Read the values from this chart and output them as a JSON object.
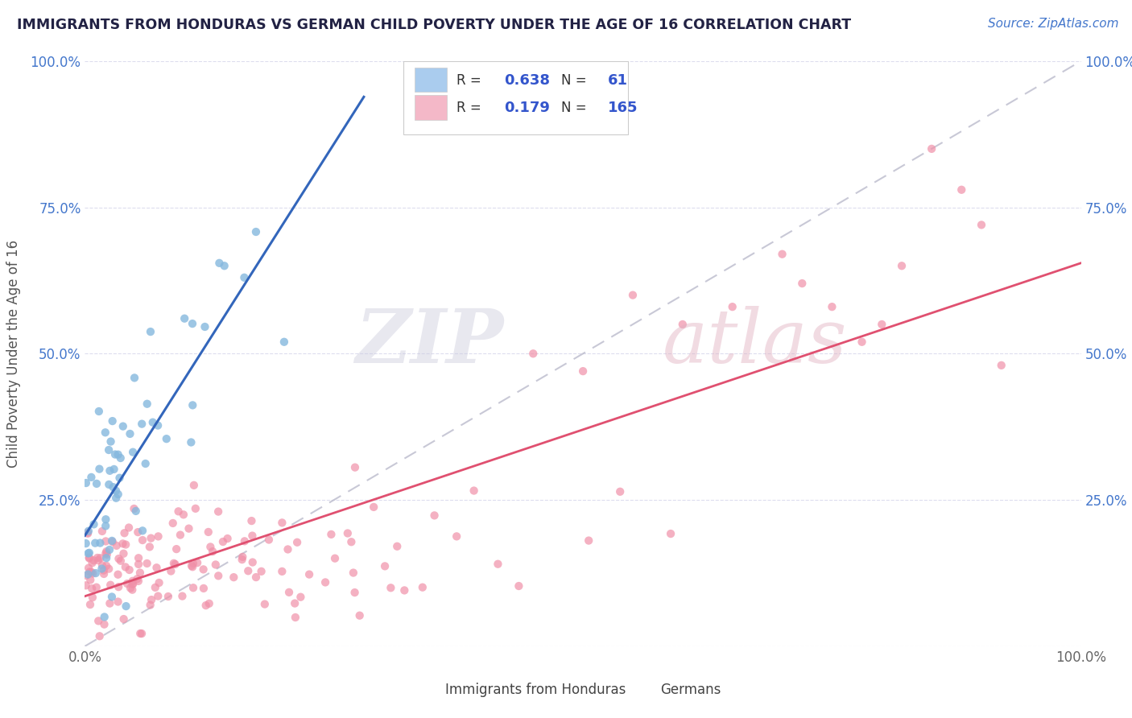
{
  "title": "IMMIGRANTS FROM HONDURAS VS GERMAN CHILD POVERTY UNDER THE AGE OF 16 CORRELATION CHART",
  "source_text": "Source: ZipAtlas.com",
  "ylabel": "Child Poverty Under the Age of 16",
  "xlim": [
    0.0,
    1.0
  ],
  "ylim": [
    0.0,
    1.0
  ],
  "blue_scatter_color": "#85b8de",
  "pink_scatter_color": "#f090a8",
  "blue_line_color": "#3366bb",
  "pink_line_color": "#e05070",
  "dashed_line_color": "#bbbbcc",
  "title_color": "#222244",
  "source_color": "#4477cc",
  "background_color": "#ffffff",
  "grid_color": "#ddddee",
  "legend_blue_color": "#aaccee",
  "legend_pink_color": "#f4b8c8",
  "R_blue": "0.638",
  "N_blue": "61",
  "R_pink": "0.179",
  "N_pink": "165",
  "label_blue": "Immigrants from Honduras",
  "label_pink": "Germans"
}
